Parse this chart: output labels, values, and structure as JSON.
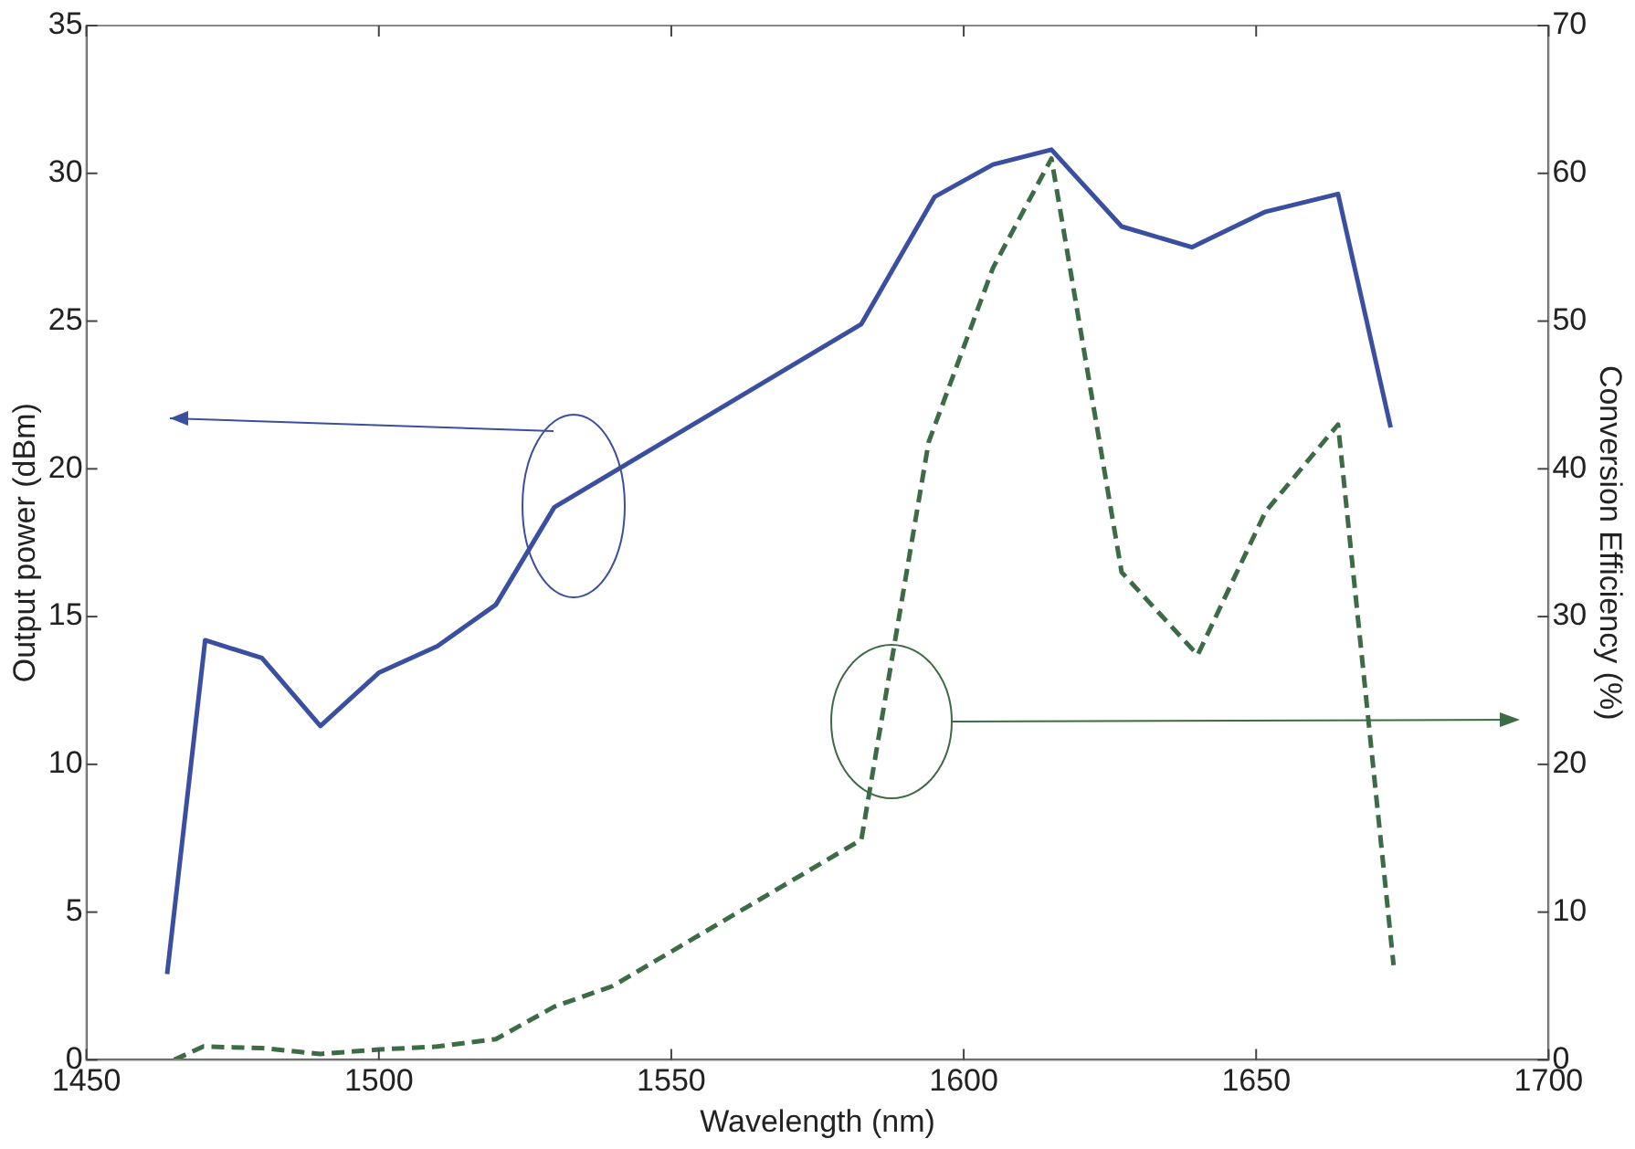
{
  "chart_data": {
    "type": "line",
    "xlabel": "Wavelength (nm)",
    "ylabel": "Output power (dBm)",
    "y2label": "Conversion Efficiency (%)",
    "xlim": [
      1450,
      1700
    ],
    "xticks": [
      1450,
      1500,
      1550,
      1600,
      1650,
      1700
    ],
    "ylim": [
      0,
      35
    ],
    "yticks": [
      0,
      5,
      10,
      15,
      20,
      25,
      30,
      35
    ],
    "y2lim": [
      0,
      70
    ],
    "y2ticks": [
      0,
      10,
      20,
      30,
      40,
      50,
      60,
      70
    ],
    "grid": false,
    "legend": false,
    "marker": "none",
    "series": [
      {
        "color": "#3a4fa0",
        "line_style": "solid",
        "x": [
          1463.8,
          1470.3,
          1480,
          1490,
          1500,
          1510,
          1520,
          1530,
          1582.5,
          1595,
          1605,
          1615,
          1627,
          1639,
          1651.6,
          1664,
          1673
        ],
        "values": [
          2.9,
          14.2,
          13.6,
          11.3,
          13.1,
          14.0,
          15.4,
          18.7,
          24.9,
          29.2,
          30.3,
          30.8,
          28.2,
          27.5,
          28.7,
          29.3,
          21.4
        ]
      },
      {
        "color": "#3d6b45",
        "line_style": "dashed",
        "axis": "y2",
        "x": [
          1465,
          1470,
          1480,
          1490,
          1500,
          1510,
          1520,
          1530,
          1540,
          1582.5,
          1594,
          1605,
          1615,
          1627,
          1640,
          1651.6,
          1664,
          1673.5
        ],
        "values": [
          0,
          0.9,
          0.8,
          0.4,
          0.7,
          0.9,
          1.4,
          3.6,
          5.0,
          14.9,
          41.8,
          53.6,
          61,
          33,
          27.4,
          37.1,
          43,
          6.4
        ]
      }
    ]
  }
}
